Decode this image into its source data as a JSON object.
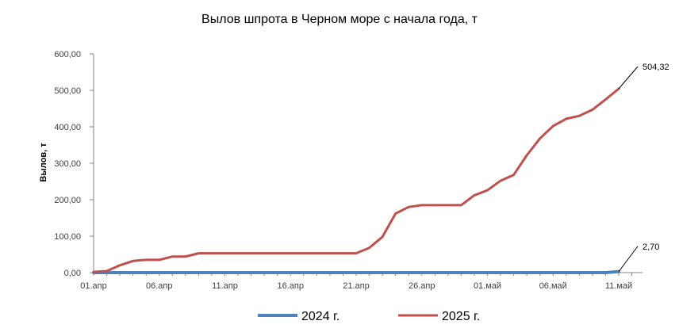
{
  "chart_data": {
    "type": "line",
    "title": "Вылов шпрота в Черном море с начала года, т",
    "xlabel": "",
    "ylabel": "Вылов, т",
    "ylim": [
      0,
      600
    ],
    "y_ticks": [
      "0,00",
      "100,00",
      "200,00",
      "300,00",
      "400,00",
      "500,00",
      "600,00"
    ],
    "y_tick_values": [
      0,
      100,
      200,
      300,
      400,
      500,
      600
    ],
    "x_tick_labels": [
      "01.апр",
      "06.апр",
      "11.апр",
      "16.апр",
      "21.апр",
      "26.апр",
      "01.май",
      "06.май",
      "11.май"
    ],
    "x_tick_days": [
      0,
      5,
      10,
      15,
      20,
      25,
      30,
      35,
      40
    ],
    "x_range_days": [
      0,
      44
    ],
    "grid": false,
    "legend_position": "bottom",
    "series": [
      {
        "name": "2024 г.",
        "color": "#4F81BD",
        "x": [
          0,
          1,
          2,
          3,
          4,
          5,
          6,
          7,
          8,
          9,
          10,
          11,
          12,
          13,
          14,
          15,
          16,
          17,
          18,
          19,
          20,
          21,
          22,
          23,
          24,
          25,
          26,
          27,
          28,
          29,
          30,
          31,
          32,
          33,
          34,
          35,
          36,
          37,
          38,
          39,
          40
        ],
        "values": [
          0,
          0,
          0,
          0,
          0,
          0,
          0,
          0,
          0,
          0,
          0,
          0,
          0,
          0,
          0,
          0,
          0,
          0,
          0,
          0,
          0,
          0,
          0,
          0,
          0,
          0,
          0,
          0,
          0,
          0,
          0,
          0,
          0,
          0,
          0,
          0,
          0,
          0,
          0,
          0,
          2.7
        ]
      },
      {
        "name": "2025 г.",
        "color": "#C0504D",
        "x": [
          0,
          1,
          2,
          3,
          4,
          5,
          6,
          7,
          8,
          9,
          10,
          11,
          12,
          13,
          14,
          15,
          16,
          17,
          18,
          19,
          20,
          21,
          22,
          23,
          24,
          25,
          26,
          27,
          28,
          29,
          30,
          31,
          32,
          33,
          34,
          35,
          36,
          37,
          38,
          39,
          40
        ],
        "values": [
          2,
          4,
          20,
          32,
          35,
          35,
          44,
          44,
          53,
          53,
          53,
          53,
          53,
          53,
          53,
          53,
          53,
          53,
          53,
          53,
          53,
          68,
          98,
          162,
          180,
          185,
          185,
          185,
          185,
          212,
          226,
          252,
          268,
          322,
          368,
          402,
          422,
          430,
          447,
          475,
          504.32
        ]
      }
    ],
    "annotations": [
      {
        "series": "2025 г.",
        "text": "504,32"
      },
      {
        "series": "2024 г.",
        "text": "2,70"
      }
    ]
  }
}
